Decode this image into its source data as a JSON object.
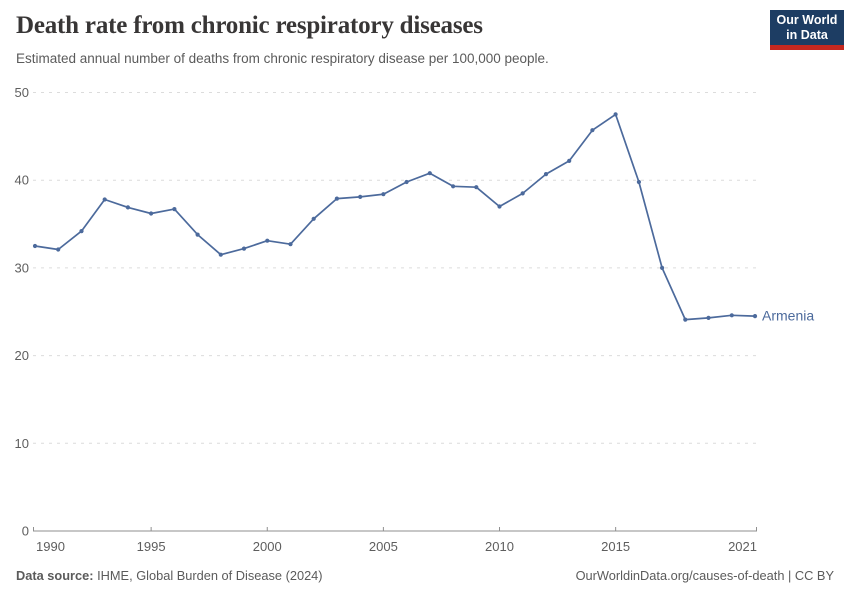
{
  "header": {
    "title": "Death rate from chronic respiratory diseases",
    "subtitle": "Estimated annual number of deaths from chronic respiratory disease per 100,000 people.",
    "logo": {
      "line1": "Our World",
      "line2": "in Data",
      "bg_color": "#1d3d63",
      "accent_color": "#c5281f"
    }
  },
  "chart_data": {
    "type": "line",
    "title": "Death rate from chronic respiratory diseases",
    "xlabel": "",
    "ylabel": "",
    "x": [
      1990,
      1991,
      1992,
      1993,
      1994,
      1995,
      1996,
      1997,
      1998,
      1999,
      2000,
      2001,
      2002,
      2003,
      2004,
      2005,
      2006,
      2007,
      2008,
      2009,
      2010,
      2011,
      2012,
      2013,
      2014,
      2015,
      2016,
      2017,
      2018,
      2019,
      2020,
      2021
    ],
    "series": [
      {
        "name": "Armenia",
        "color": "#4c6a9c",
        "values": [
          32.5,
          32.1,
          34.2,
          37.8,
          36.9,
          36.2,
          36.7,
          33.8,
          31.5,
          32.2,
          33.1,
          32.7,
          35.6,
          37.9,
          38.1,
          38.4,
          39.8,
          40.8,
          39.3,
          39.2,
          37.0,
          38.5,
          40.7,
          42.2,
          45.7,
          47.5,
          39.8,
          30.0,
          24.1,
          24.3,
          24.6,
          24.5
        ]
      }
    ],
    "xticks": [
      1990,
      1995,
      2000,
      2005,
      2010,
      2015,
      2021
    ],
    "yticks": [
      0,
      10,
      20,
      30,
      40,
      50
    ],
    "xlim": [
      1990,
      2021
    ],
    "ylim": [
      0,
      50
    ],
    "grid": "horizontal-dashed",
    "grid_color": "#dcdcdc",
    "axis_color": "#8f8f8f",
    "legend": "end-of-line-label"
  },
  "footer": {
    "source_label": "Data source:",
    "source_text": " IHME, Global Burden of Disease (2024)",
    "credit": "OurWorldinData.org/causes-of-death | CC BY"
  }
}
